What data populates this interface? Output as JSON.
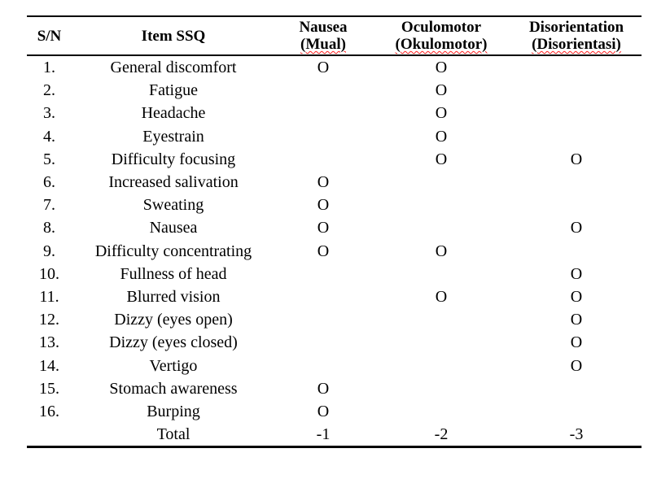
{
  "table": {
    "header": {
      "sn": "S/N",
      "item": "Item SSQ",
      "nausea": {
        "en": "Nausea",
        "local": "(Mual)"
      },
      "oculomotor": {
        "en": "Oculomotor",
        "local": "(Okulomotor)"
      },
      "disorientation": {
        "en": "Disorientation",
        "local": "(Disorientasi)"
      }
    },
    "mark_symbol": "O",
    "rows": [
      {
        "sn": "1.",
        "item": "General discomfort",
        "nausea": "O",
        "oculomotor": "O",
        "disorientation": ""
      },
      {
        "sn": "2.",
        "item": "Fatigue",
        "nausea": "",
        "oculomotor": "O",
        "disorientation": ""
      },
      {
        "sn": "3.",
        "item": "Headache",
        "nausea": "",
        "oculomotor": "O",
        "disorientation": ""
      },
      {
        "sn": "4.",
        "item": "Eyestrain",
        "nausea": "",
        "oculomotor": "O",
        "disorientation": ""
      },
      {
        "sn": "5.",
        "item": "Difficulty focusing",
        "nausea": "",
        "oculomotor": "O",
        "disorientation": "O"
      },
      {
        "sn": "6.",
        "item": "Increased salivation",
        "nausea": "O",
        "oculomotor": "",
        "disorientation": ""
      },
      {
        "sn": "7.",
        "item": "Sweating",
        "nausea": "O",
        "oculomotor": "",
        "disorientation": ""
      },
      {
        "sn": "8.",
        "item": "Nausea",
        "nausea": "O",
        "oculomotor": "",
        "disorientation": "O"
      },
      {
        "sn": "9.",
        "item": "Difficulty concentrating",
        "nausea": "O",
        "oculomotor": "O",
        "disorientation": ""
      },
      {
        "sn": "10.",
        "item": "Fullness of head",
        "nausea": "",
        "oculomotor": "",
        "disorientation": "O"
      },
      {
        "sn": "11.",
        "item": "Blurred vision",
        "nausea": "",
        "oculomotor": "O",
        "disorientation": "O"
      },
      {
        "sn": "12.",
        "item": "Dizzy (eyes open)",
        "nausea": "",
        "oculomotor": "",
        "disorientation": "O"
      },
      {
        "sn": "13.",
        "item": "Dizzy (eyes closed)",
        "nausea": "",
        "oculomotor": "",
        "disorientation": "O"
      },
      {
        "sn": "14.",
        "item": "Vertigo",
        "nausea": "",
        "oculomotor": "",
        "disorientation": "O"
      },
      {
        "sn": "15.",
        "item": "Stomach awareness",
        "nausea": "O",
        "oculomotor": "",
        "disorientation": ""
      },
      {
        "sn": "16.",
        "item": "Burping",
        "nausea": "O",
        "oculomotor": "",
        "disorientation": ""
      },
      {
        "sn": "",
        "item": "Total",
        "nausea": "-1",
        "oculomotor": "-2",
        "disorientation": "-3"
      }
    ]
  },
  "colors": {
    "text": "#000000",
    "rule": "#000000",
    "background": "#ffffff",
    "spellcheck_underline": "#ff1f1f"
  }
}
